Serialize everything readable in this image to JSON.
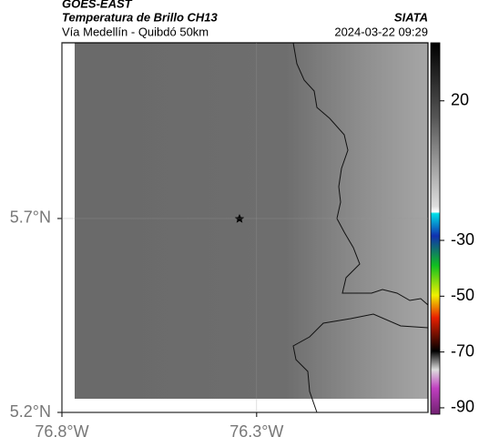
{
  "header": {
    "satellite": "GOES-EAST",
    "product": "Temperatura de Brillo CH13",
    "route": "Vía Medellín - Quibdó 50km",
    "org": "SIATA",
    "datetime": "2024-03-22 09:29"
  },
  "map": {
    "lat_range": [
      5.2,
      6.153
    ],
    "lon_range": [
      -76.8,
      -75.86
    ],
    "lat_ticks": [
      {
        "value": 5.7,
        "label": "5.7°N"
      },
      {
        "value": 5.2,
        "label": "5.2°N"
      }
    ],
    "lon_ticks": [
      {
        "value": -76.8,
        "label": "76.8°W"
      },
      {
        "value": -76.3,
        "label": "76.3°W"
      }
    ]
  },
  "colorbar": {
    "range": [
      -92.3,
      40.8
    ],
    "ticks": [
      20,
      -30,
      -50,
      -70,
      -90
    ]
  }
}
